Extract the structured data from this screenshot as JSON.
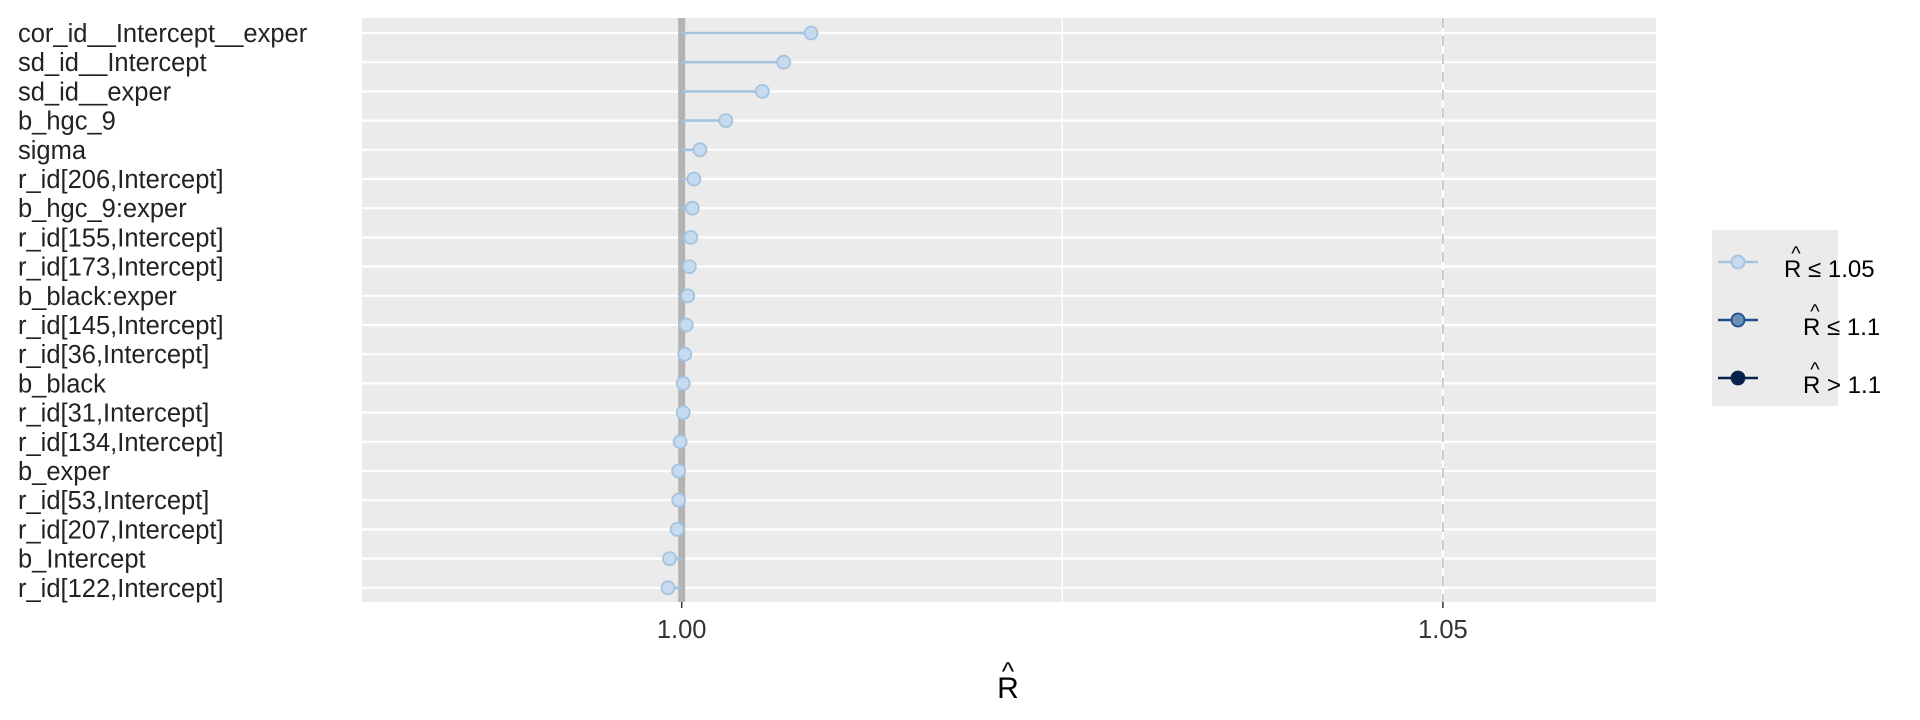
{
  "chart_data": {
    "type": "scatter",
    "title": "",
    "xlabel": "R",
    "xlabel_hat": "^",
    "ylabel": "",
    "xlim": [
      0.979,
      1.064
    ],
    "x_ticks": [
      {
        "value": 1.0,
        "label": "1.00"
      },
      {
        "value": 1.05,
        "label": "1.05"
      }
    ],
    "minor_gridlines": [
      1.025
    ],
    "reference_lines": [
      {
        "value": 1.0,
        "style": "solid",
        "color": "#b3b3b3"
      },
      {
        "value": 1.05,
        "style": "dashed",
        "color": "#bdbdbd"
      }
    ],
    "grid": true,
    "point_color": "#c6dbef",
    "line_color": "#a5c3de",
    "categories": [
      "cor_id__Intercept__exper",
      "sd_id__Intercept",
      "sd_id__exper",
      "b_hgc_9",
      "sigma",
      "r_id[206,Intercept]",
      "b_hgc_9:exper",
      "r_id[155,Intercept]",
      "r_id[173,Intercept]",
      "b_black:exper",
      "r_id[145,Intercept]",
      "r_id[36,Intercept]",
      "b_black",
      "r_id[31,Intercept]",
      "r_id[134,Intercept]",
      "b_exper",
      "r_id[53,Intercept]",
      "r_id[207,Intercept]",
      "b_Intercept",
      "r_id[122,Intercept]"
    ],
    "values": [
      1.0085,
      1.0067,
      1.0053,
      1.0029,
      1.0012,
      1.0008,
      1.0007,
      1.0006,
      1.0005,
      1.0004,
      1.0003,
      1.0002,
      1.0001,
      1.0001,
      0.9999,
      0.9998,
      0.9998,
      0.9997,
      0.9992,
      0.9991
    ],
    "legend": {
      "position": "right",
      "entries": [
        {
          "hat": "^",
          "label": "R ≤ 1.05",
          "point_color": "#c6dbef",
          "line_color": "#a5c3de"
        },
        {
          "hat": "^",
          "label": "R ≤ 1.1",
          "point_color": "#6a8fb8",
          "line_color": "#1c4f8c"
        },
        {
          "hat": "^",
          "label": "R > 1.1",
          "point_color": "#08214a",
          "line_color": "#08214a"
        }
      ]
    }
  }
}
